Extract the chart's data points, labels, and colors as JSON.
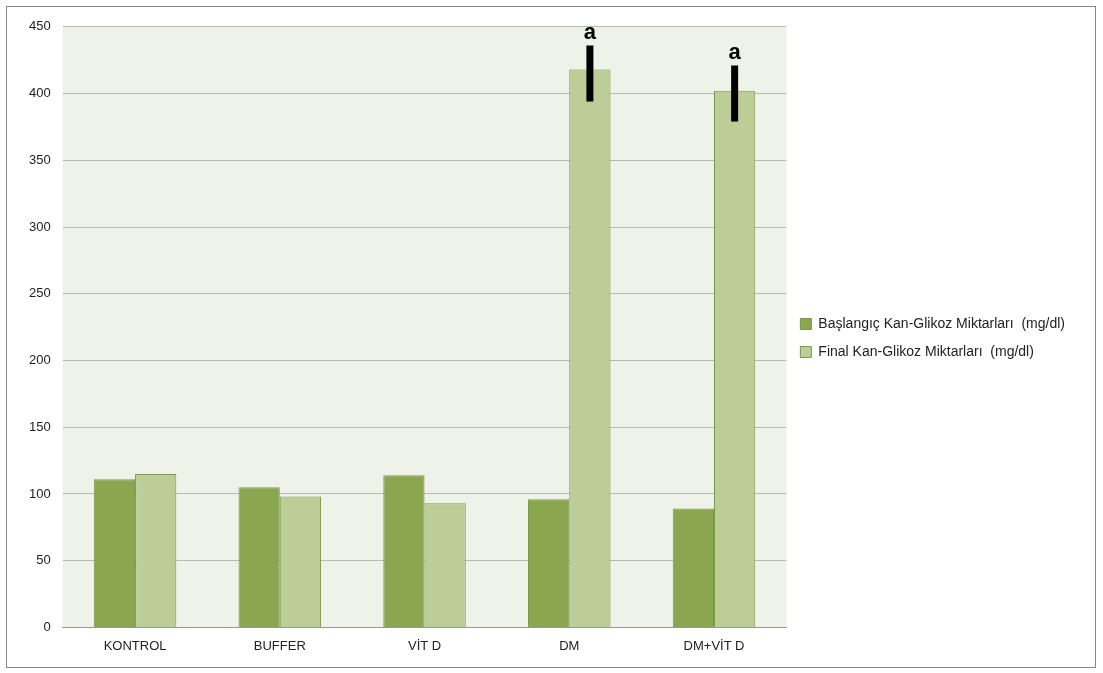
{
  "chart_data": {
    "type": "bar",
    "categories": [
      "KONTROL",
      "BUFFER",
      "VİT D",
      "DM",
      "DM+VİT D"
    ],
    "series": [
      {
        "name": "Başlangıç Kan-Glikoz Miktarları  (mg/dl)",
        "color": "#8aa64f",
        "values": [
          111,
          105,
          114,
          96,
          89
        ]
      },
      {
        "name": "Final Kan-Glikoz Miktarları  (mg/dl)",
        "color": "#bccd98",
        "values": [
          115,
          98,
          93,
          418,
          402
        ],
        "errors": [
          null,
          null,
          null,
          [
            394,
            436
          ],
          [
            379,
            421
          ]
        ]
      }
    ],
    "ylim": [
      0,
      450
    ],
    "yticks": [
      0,
      50,
      100,
      150,
      200,
      250,
      300,
      350,
      400,
      450
    ],
    "grid": "y",
    "legend": "right",
    "annotations": [
      "a",
      "a"
    ]
  }
}
